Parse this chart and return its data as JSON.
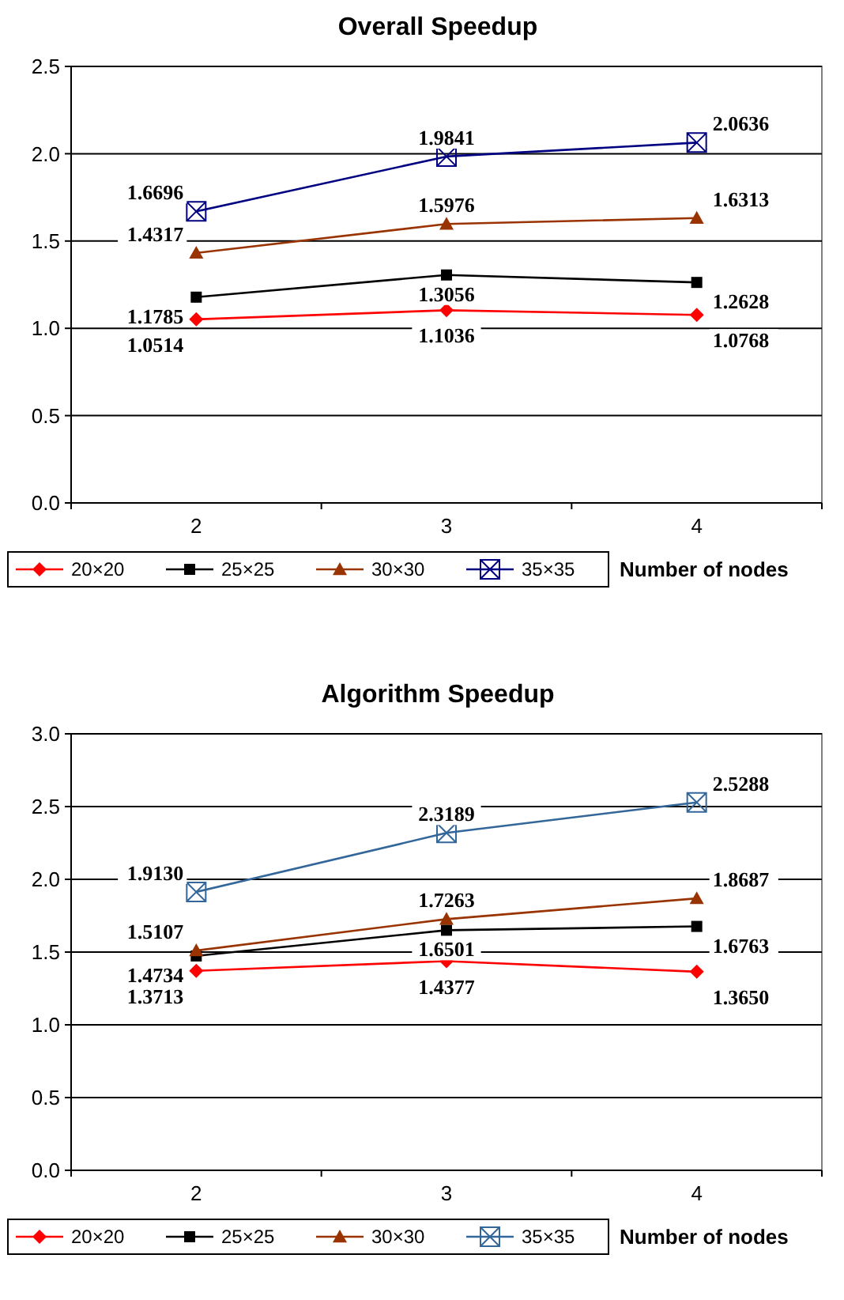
{
  "chart_data": [
    {
      "type": "line",
      "title": "Overall Speedup",
      "xlabel": "Number of nodes",
      "categories": [
        "2",
        "3",
        "4"
      ],
      "ylim": [
        0,
        2.5
      ],
      "yticks": [
        "0.0",
        "0.5",
        "1.0",
        "1.5",
        "2.0",
        "2.5"
      ],
      "grid": "y",
      "legend": "bottom",
      "series": [
        {
          "name": "20×20",
          "color": "#ff0000",
          "marker": "diamond",
          "values": [
            1.0514,
            1.1036,
            1.0768
          ],
          "value_labels": [
            "1.0514",
            "1.1036",
            "1.0768"
          ]
        },
        {
          "name": "25×25",
          "color": "#000000",
          "marker": "square",
          "values": [
            1.1785,
            1.3056,
            1.2628
          ],
          "value_labels": [
            "1.1785",
            "1.3056",
            "1.2628"
          ]
        },
        {
          "name": "30×30",
          "color": "#993300",
          "marker": "triangle",
          "values": [
            1.4317,
            1.5976,
            1.6313
          ],
          "value_labels": [
            "1.4317",
            "1.5976",
            "1.6313"
          ]
        },
        {
          "name": "35×35",
          "color": "#000080",
          "marker": "cross",
          "values": [
            1.6696,
            1.9841,
            2.0636
          ],
          "value_labels": [
            "1.6696",
            "1.9841",
            "2.0636"
          ]
        }
      ]
    },
    {
      "type": "line",
      "title": "Algorithm Speedup",
      "xlabel": "Number of nodes",
      "categories": [
        "2",
        "3",
        "4"
      ],
      "ylim": [
        0,
        3
      ],
      "yticks": [
        "0.0",
        "0.5",
        "1.0",
        "1.5",
        "2.0",
        "2.5",
        "3.0"
      ],
      "grid": "y",
      "legend": "bottom",
      "series": [
        {
          "name": "20×20",
          "color": "#ff0000",
          "marker": "diamond",
          "values": [
            1.3713,
            1.4377,
            1.365
          ],
          "value_labels": [
            "1.3713",
            "1.4377",
            "1.3650"
          ]
        },
        {
          "name": "25×25",
          "color": "#000000",
          "marker": "square",
          "values": [
            1.4734,
            1.6501,
            1.6763
          ],
          "value_labels": [
            "1.4734",
            "1.6501",
            "1.6763"
          ]
        },
        {
          "name": "30×30",
          "color": "#993300",
          "marker": "triangle",
          "values": [
            1.5107,
            1.7263,
            1.8687
          ],
          "value_labels": [
            "1.5107",
            "1.7263",
            "1.8687"
          ]
        },
        {
          "name": "35×35",
          "color": "#336699",
          "marker": "cross",
          "values": [
            1.913,
            2.3189,
            2.5288
          ],
          "value_labels": [
            "1.9130",
            "2.3189",
            "2.5288"
          ]
        }
      ]
    }
  ]
}
